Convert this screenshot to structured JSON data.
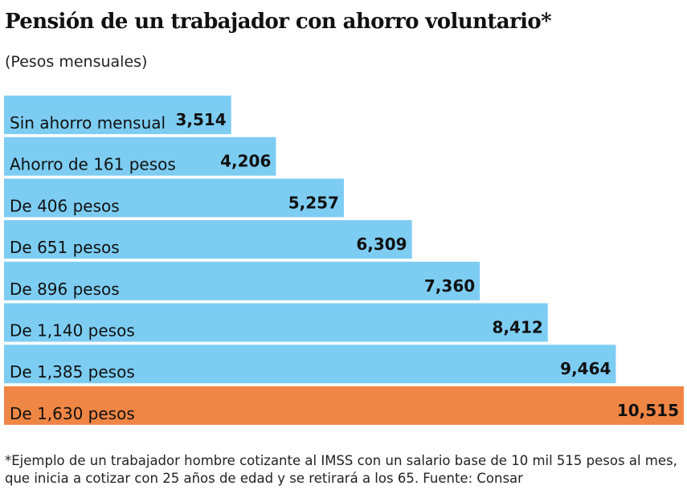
{
  "chart_data": {
    "type": "bar",
    "orientation": "horizontal",
    "title": "Pensión de un trabajador con ahorro voluntario*",
    "subtitle": "(Pesos mensuales)",
    "categories": [
      "Sin ahorro mensual",
      "Ahorro de 161 pesos",
      "De 406 pesos",
      "De 651 pesos",
      "De 896 pesos",
      "De 1,140 pesos",
      "De 1,385 pesos",
      "De 1,630 pesos"
    ],
    "values": [
      3514,
      4206,
      5257,
      6309,
      7360,
      8412,
      9464,
      10515
    ],
    "value_labels": [
      "3,514",
      "4,206",
      "5,257",
      "6,309",
      "7,360",
      "8,412",
      "9,464",
      "10,515"
    ],
    "highlight_index": 7,
    "colors": {
      "bar": "#7dcdf3",
      "highlight": "#f08645"
    },
    "xlim": [
      0,
      10515
    ],
    "grid": false,
    "note": "*Ejemplo de un trabajador hombre cotizante al IMSS con un salario base de 10 mil 515 pesos al mes, que inicia a cotizar con 25 años de edad y se retirará a los 65. Fuente: Consar"
  }
}
